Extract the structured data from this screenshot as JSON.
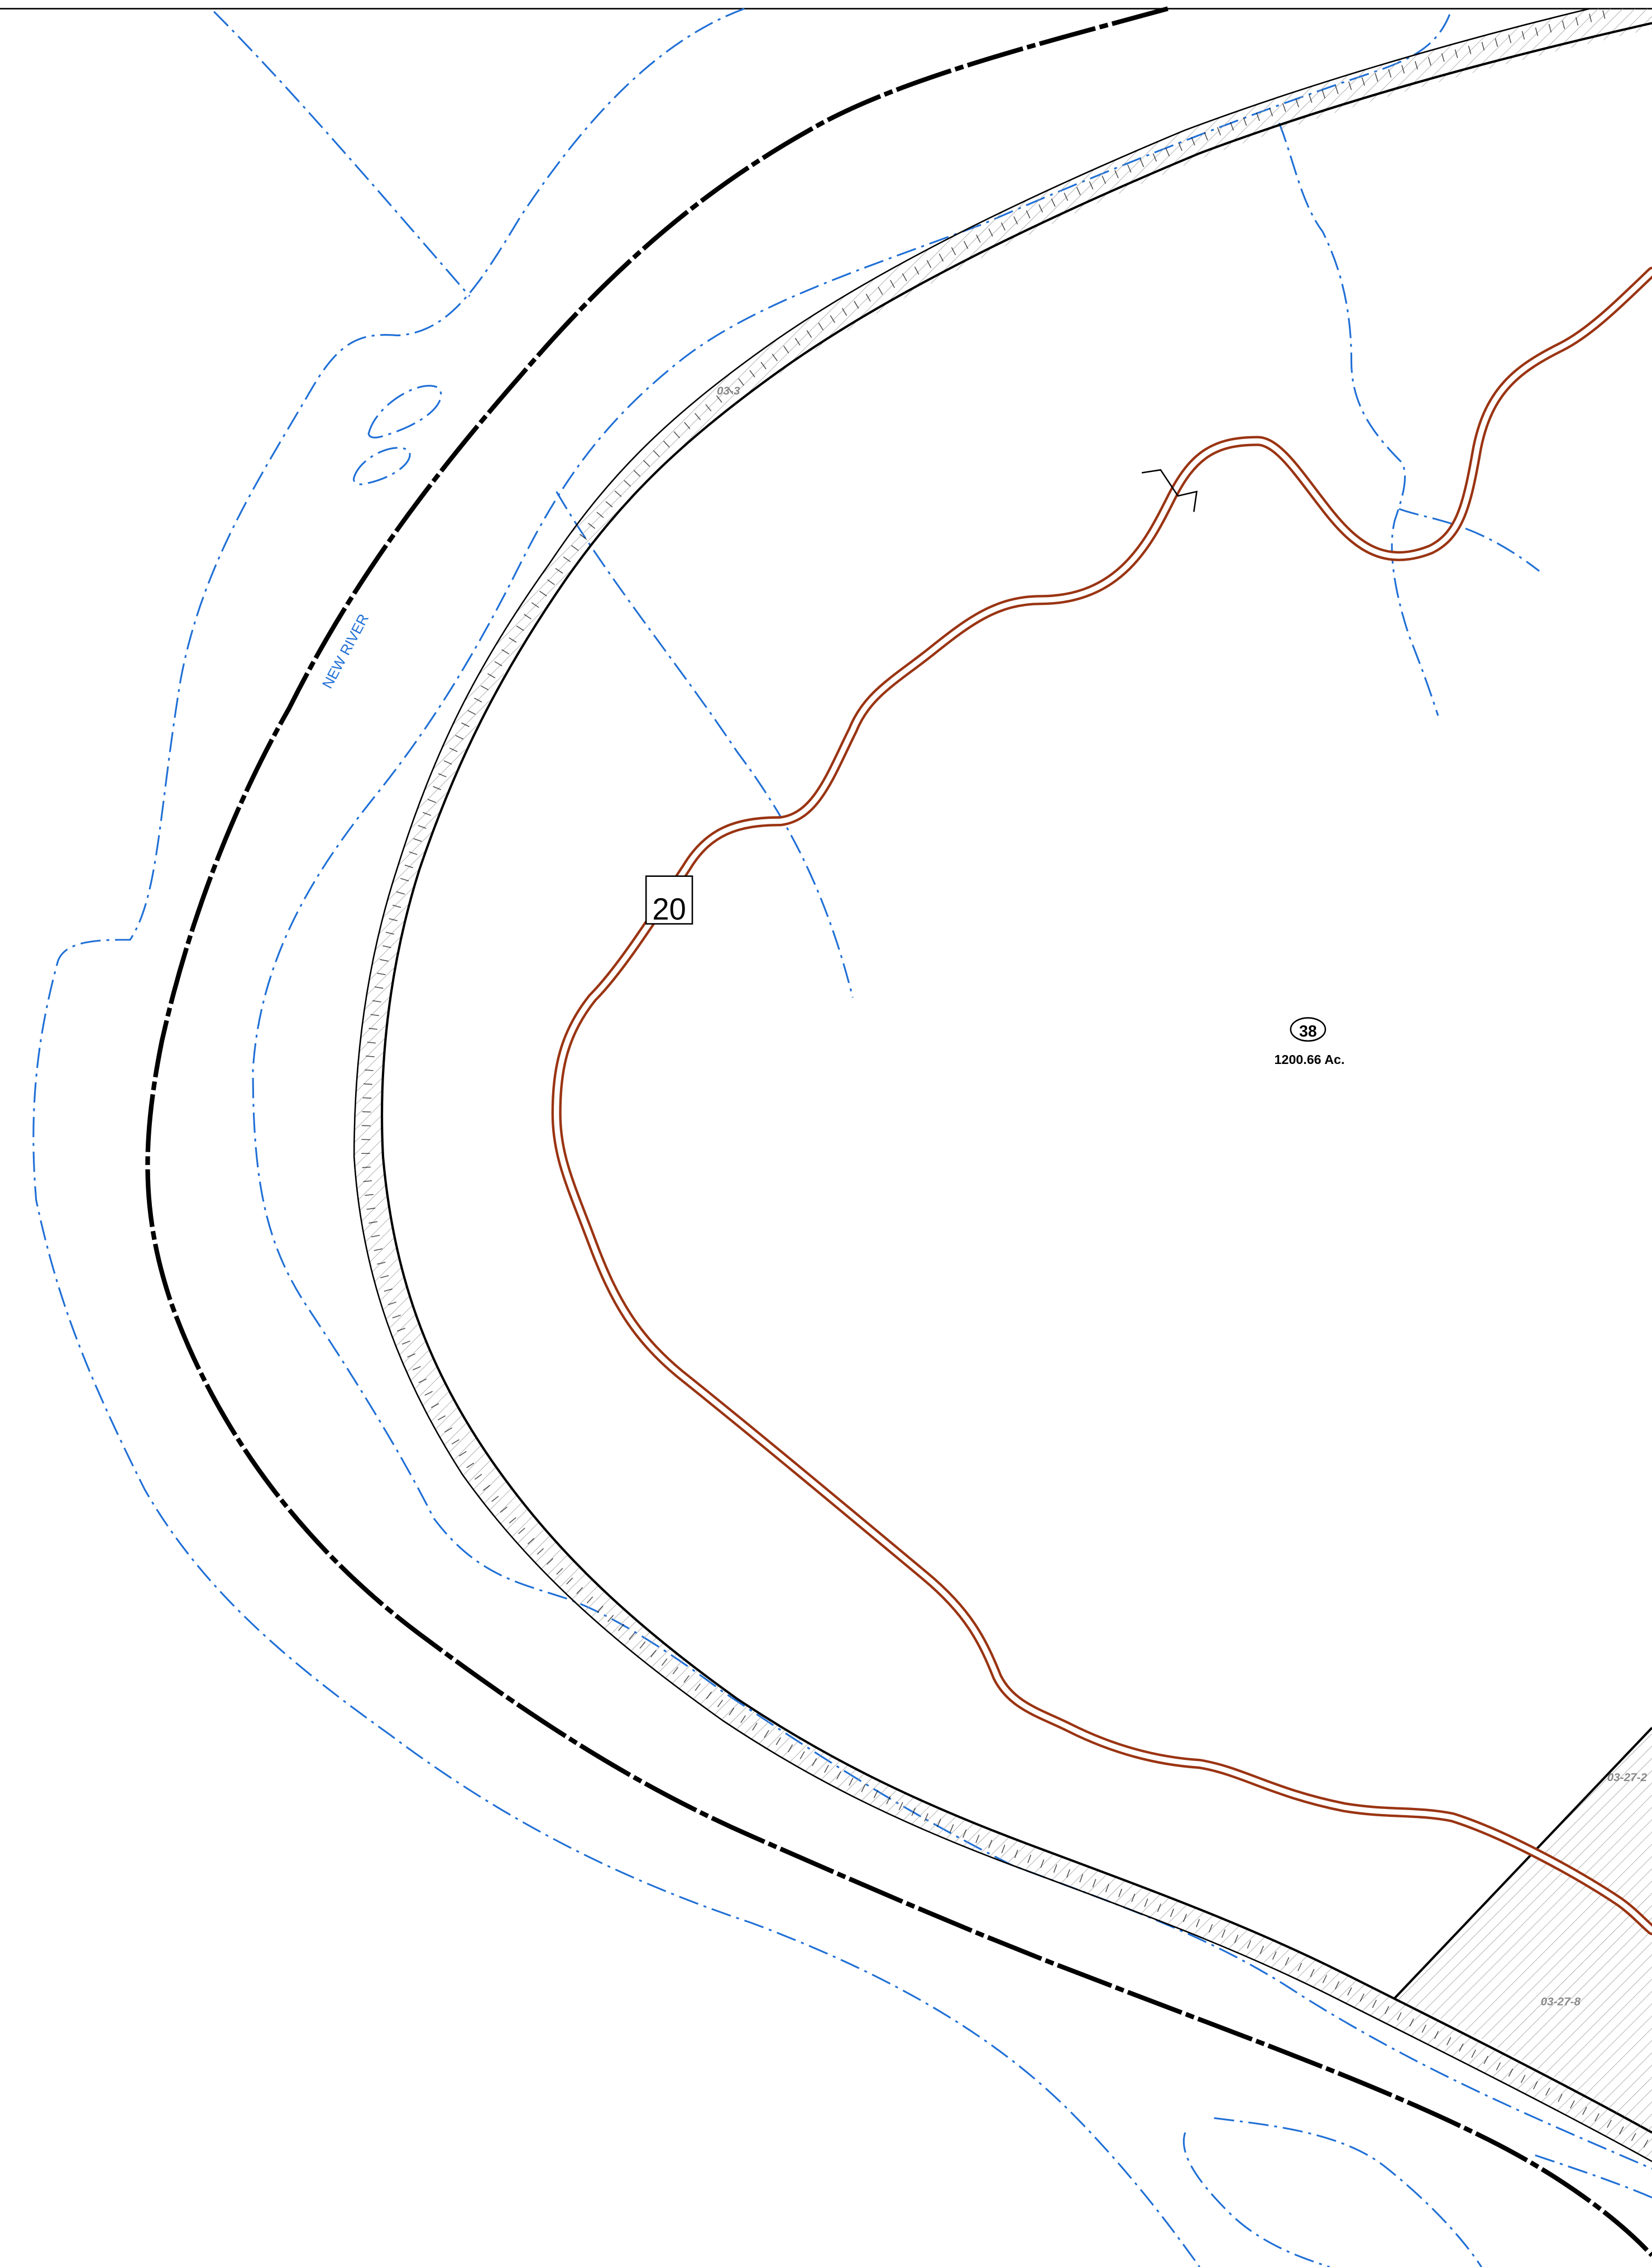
{
  "map": {
    "river_label": "NEW RIVER",
    "route_shield": "20",
    "parcel_number": "38",
    "parcel_area": "1200.66 Ac.",
    "parcel_ids": [
      "03-3",
      "03-27-2",
      "03-27-8"
    ]
  },
  "colors": {
    "water": "#1f6fd6",
    "road": "#9a3412",
    "boundary": "#000000",
    "hatch": "#8a8a8a",
    "background": "#ffffff"
  },
  "icons": {
    "route_shield": "route-shield-icon",
    "parcel_badge": "parcel-number-badge-icon",
    "break_symbol": "break-line-icon"
  }
}
